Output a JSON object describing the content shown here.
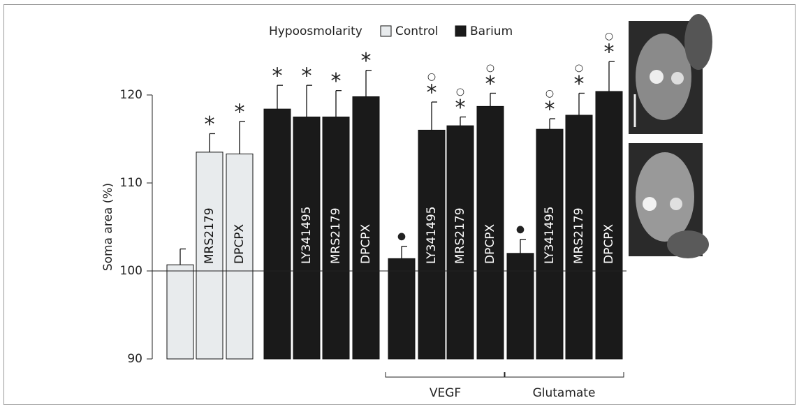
{
  "chart_data": {
    "type": "bar",
    "y_label": "Soma area (%)",
    "legend_title": "Hypoosmolarity",
    "categories": [
      null,
      "MRS2179",
      "DPCPX",
      null,
      "LY341495",
      "MRS2179",
      "DPCPX",
      null,
      "LY341495",
      "MRS2179",
      "DPCPX",
      null,
      "LY341495",
      "MRS2179",
      "DPCPX"
    ],
    "series": [
      {
        "name": "Control",
        "color": "#e8ebed",
        "values": [
          100.7,
          113.5,
          113.3,
          null,
          null,
          null,
          null,
          null,
          null,
          null,
          null,
          null,
          null,
          null,
          null
        ],
        "errors": [
          1.8,
          2.1,
          3.7,
          null,
          null,
          null,
          null,
          null,
          null,
          null,
          null,
          null,
          null,
          null,
          null
        ]
      },
      {
        "name": "Barium",
        "color": "#1a1a1a",
        "values": [
          null,
          null,
          null,
          118.4,
          117.5,
          117.5,
          119.8,
          101.4,
          116.0,
          116.5,
          118.7,
          102.0,
          116.1,
          117.7,
          120.4
        ],
        "errors": [
          null,
          null,
          null,
          2.7,
          3.6,
          3.0,
          3.0,
          1.4,
          3.2,
          1.0,
          1.5,
          1.6,
          1.2,
          2.5,
          3.4
        ]
      }
    ],
    "significance": [
      [],
      [
        "*"
      ],
      [
        "*"
      ],
      [
        "*"
      ],
      [
        "*"
      ],
      [
        "*"
      ],
      [
        "*"
      ],
      [
        "●"
      ],
      [
        "○",
        "*"
      ],
      [
        "○",
        "*"
      ],
      [
        "○",
        "*"
      ],
      [
        "●"
      ],
      [
        "○",
        "*"
      ],
      [
        "○",
        "*"
      ],
      [
        "○",
        "*"
      ]
    ],
    "groups": [
      "VEGF",
      "Glutamate"
    ],
    "ylim": [
      90,
      120
    ],
    "yticks": [
      90,
      100,
      110,
      120
    ]
  }
}
